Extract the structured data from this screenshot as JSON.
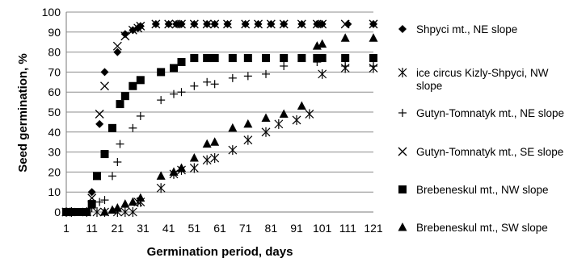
{
  "chart_data": {
    "type": "scatter",
    "title": "",
    "xlabel": "Germination period, days",
    "ylabel": "Seed germination, %",
    "xlim": [
      1,
      121
    ],
    "ylim": [
      0,
      100
    ],
    "x_ticks": [
      1,
      11,
      21,
      31,
      41,
      51,
      61,
      71,
      81,
      91,
      101,
      111,
      121
    ],
    "y_ticks": [
      0,
      10,
      20,
      30,
      40,
      50,
      60,
      70,
      80,
      90,
      100
    ],
    "grid": "horizontal",
    "legend_position": "right",
    "series": [
      {
        "name": "Shpyci mt., NE slope",
        "marker": "diamond",
        "points": [
          [
            1,
            0
          ],
          [
            3,
            0
          ],
          [
            9,
            0
          ],
          [
            11,
            10
          ],
          [
            14,
            44
          ],
          [
            16,
            70
          ],
          [
            21,
            80
          ],
          [
            24,
            89
          ],
          [
            27,
            91
          ],
          [
            29,
            92
          ],
          [
            30,
            93
          ],
          [
            36,
            94
          ],
          [
            41,
            94
          ],
          [
            44,
            94
          ],
          [
            46,
            94
          ],
          [
            51,
            94
          ],
          [
            56,
            94
          ],
          [
            59,
            94
          ],
          [
            64,
            94
          ],
          [
            71,
            94
          ],
          [
            76,
            94
          ],
          [
            81,
            94
          ],
          [
            86,
            94
          ],
          [
            93,
            94
          ],
          [
            99,
            94
          ],
          [
            101,
            94
          ],
          [
            111,
            94
          ],
          [
            121,
            94
          ]
        ]
      },
      {
        "name": "ice circus Kizly-Shpyci, NW slope",
        "marker": "star",
        "points": [
          [
            1,
            0
          ],
          [
            3,
            0
          ],
          [
            9,
            0
          ],
          [
            13,
            0
          ],
          [
            16,
            0
          ],
          [
            21,
            0
          ],
          [
            24,
            0
          ],
          [
            27,
            0
          ],
          [
            29,
            5
          ],
          [
            30,
            5
          ],
          [
            38,
            12
          ],
          [
            43,
            19
          ],
          [
            46,
            21
          ],
          [
            51,
            22
          ],
          [
            56,
            26
          ],
          [
            59,
            27
          ],
          [
            66,
            31
          ],
          [
            72,
            36
          ],
          [
            79,
            40
          ],
          [
            84,
            44
          ],
          [
            91,
            46
          ],
          [
            96,
            49
          ],
          [
            101,
            69
          ],
          [
            110,
            72
          ],
          [
            121,
            72
          ]
        ]
      },
      {
        "name": "Gutyn-Tomnatyk mt., NE slope",
        "marker": "plus",
        "points": [
          [
            1,
            0
          ],
          [
            3,
            0
          ],
          [
            9,
            0
          ],
          [
            11,
            2
          ],
          [
            14,
            5
          ],
          [
            16,
            6
          ],
          [
            19,
            18
          ],
          [
            21,
            25
          ],
          [
            22,
            34
          ],
          [
            27,
            42
          ],
          [
            30,
            48
          ],
          [
            38,
            56
          ],
          [
            43,
            59
          ],
          [
            46,
            60
          ],
          [
            51,
            63
          ],
          [
            56,
            65
          ],
          [
            59,
            64
          ],
          [
            66,
            67
          ],
          [
            72,
            68
          ],
          [
            79,
            69
          ],
          [
            86,
            73
          ],
          [
            99,
            75
          ],
          [
            110,
            73
          ],
          [
            121,
            73
          ]
        ]
      },
      {
        "name": "Gutyn-Tomnatyk mt., SE slope",
        "marker": "x",
        "points": [
          [
            1,
            0
          ],
          [
            9,
            0
          ],
          [
            11,
            7
          ],
          [
            14,
            49
          ],
          [
            16,
            63
          ],
          [
            21,
            83
          ],
          [
            24,
            88
          ],
          [
            27,
            91
          ],
          [
            29,
            92
          ],
          [
            30,
            93
          ],
          [
            36,
            94
          ],
          [
            41,
            94
          ],
          [
            44,
            94
          ],
          [
            46,
            94
          ],
          [
            51,
            94
          ],
          [
            56,
            94
          ],
          [
            59,
            94
          ],
          [
            64,
            94
          ],
          [
            71,
            94
          ],
          [
            76,
            94
          ],
          [
            81,
            94
          ],
          [
            86,
            94
          ],
          [
            93,
            94
          ],
          [
            99,
            94
          ],
          [
            101,
            94
          ],
          [
            110,
            94
          ],
          [
            121,
            94
          ]
        ]
      },
      {
        "name": "Brebeneskul mt., NW slope",
        "marker": "square",
        "points": [
          [
            1,
            0
          ],
          [
            3,
            0
          ],
          [
            6,
            0
          ],
          [
            9,
            0
          ],
          [
            11,
            4
          ],
          [
            13,
            18
          ],
          [
            16,
            29
          ],
          [
            19,
            42
          ],
          [
            22,
            54
          ],
          [
            24,
            58
          ],
          [
            27,
            63
          ],
          [
            30,
            66
          ],
          [
            38,
            70
          ],
          [
            43,
            72
          ],
          [
            46,
            75
          ],
          [
            51,
            77
          ],
          [
            56,
            77
          ],
          [
            59,
            77
          ],
          [
            66,
            77
          ],
          [
            72,
            77
          ],
          [
            79,
            77
          ],
          [
            86,
            77
          ],
          [
            93,
            77
          ],
          [
            99,
            77
          ],
          [
            101,
            77
          ],
          [
            110,
            77
          ],
          [
            121,
            77
          ]
        ]
      },
      {
        "name": "Brebeneskul mt., SW slope",
        "marker": "triangle",
        "points": [
          [
            1,
            0
          ],
          [
            3,
            0
          ],
          [
            9,
            0
          ],
          [
            16,
            0
          ],
          [
            19,
            1
          ],
          [
            21,
            2
          ],
          [
            24,
            4
          ],
          [
            27,
            5
          ],
          [
            30,
            7
          ],
          [
            38,
            18
          ],
          [
            43,
            20
          ],
          [
            46,
            22
          ],
          [
            51,
            27
          ],
          [
            56,
            34
          ],
          [
            59,
            35
          ],
          [
            66,
            42
          ],
          [
            72,
            44
          ],
          [
            79,
            47
          ],
          [
            86,
            49
          ],
          [
            93,
            53
          ],
          [
            99,
            83
          ],
          [
            101,
            84
          ],
          [
            110,
            87
          ],
          [
            121,
            87
          ]
        ]
      }
    ]
  }
}
